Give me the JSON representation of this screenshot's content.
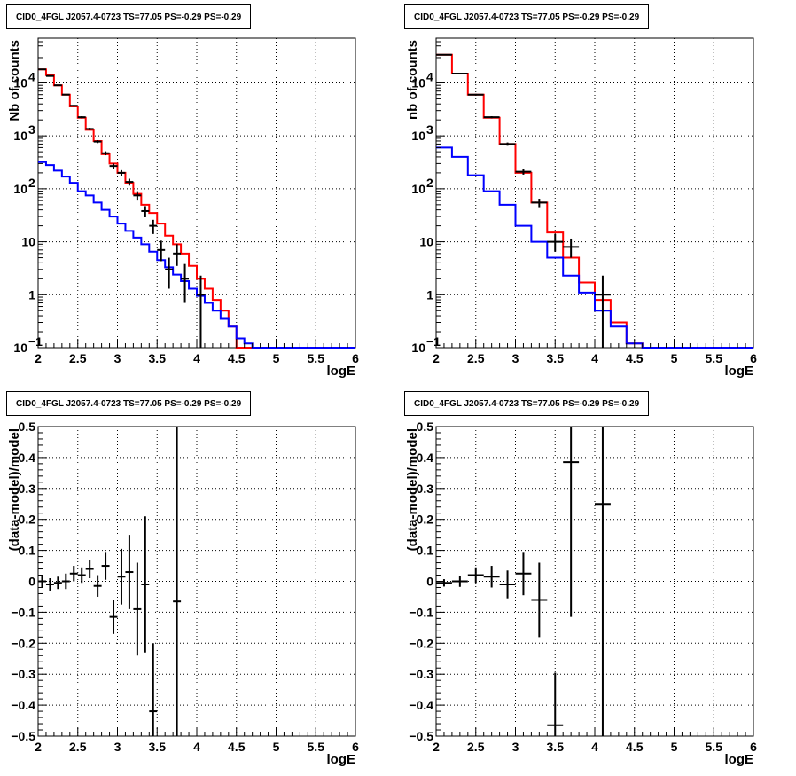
{
  "chart_data": [
    {
      "type": "line",
      "title": "CID0_4FGL J2057.4-0723 TS=77.05 PS=-0.29 PS=-0.29",
      "xlabel": "logE",
      "ylabel": "Nb of counts",
      "xlim": [
        2,
        6
      ],
      "ylim": [
        0.1,
        70000
      ],
      "yscale": "log",
      "grid": true,
      "xticks": [
        "2",
        "2.5",
        "3",
        "3.5",
        "4",
        "4.5",
        "5",
        "5.5",
        "6"
      ],
      "yticks": [
        {
          "v": 0.1,
          "label": "10",
          "sup": "−1"
        },
        {
          "v": 1,
          "label": "1"
        },
        {
          "v": 10,
          "label": "10"
        },
        {
          "v": 100,
          "label": "10",
          "sup": "2"
        },
        {
          "v": 1000,
          "label": "10",
          "sup": "3"
        },
        {
          "v": 10000,
          "label": "10",
          "sup": "4"
        }
      ],
      "bin_edges": [
        2.0,
        2.1,
        2.2,
        2.3,
        2.4,
        2.5,
        2.6,
        2.7,
        2.8,
        2.9,
        3.0,
        3.1,
        3.2,
        3.3,
        3.4,
        3.5,
        3.6,
        3.7,
        3.8,
        3.9,
        4.0,
        4.1,
        4.2,
        4.3,
        4.4,
        4.5,
        4.6,
        4.7,
        4.8,
        4.9,
        5.0,
        5.1,
        5.2,
        5.3,
        5.4,
        5.5,
        5.6,
        5.7,
        5.8,
        5.9,
        6.0
      ],
      "series": [
        {
          "color": "#ff0000",
          "style": "step",
          "values": [
            18000,
            14000,
            9000,
            6000,
            3600,
            2200,
            1300,
            800,
            450,
            300,
            200,
            130,
            80,
            50,
            35,
            22,
            13,
            9,
            6,
            3.5,
            2,
            1.3,
            0.8,
            0.5,
            0.25,
            0.1,
            0.1,
            0.1,
            0.1,
            0.1,
            0.1,
            0.1,
            0.1,
            0.1,
            0.1,
            0.1,
            0.1,
            0.1,
            0.1,
            0.1
          ]
        },
        {
          "color": "#0000ff",
          "style": "step",
          "values": [
            320,
            280,
            220,
            170,
            130,
            90,
            75,
            55,
            40,
            30,
            22,
            16,
            12,
            9,
            6.5,
            4.5,
            3.3,
            2.4,
            1.8,
            1.3,
            0.95,
            0.7,
            0.5,
            0.35,
            0.25,
            0.15,
            0.12,
            0.1,
            0.1,
            0.1,
            0.1,
            0.1,
            0.1,
            0.1,
            0.1,
            0.1,
            0.1,
            0.1,
            0.1,
            0.1
          ]
        },
        {
          "color": "#000000",
          "style": "points",
          "points": [
            {
              "x": 2.05,
              "y": 18000,
              "xerr": 0.05,
              "ylo": 17800,
              "yhi": 18200
            },
            {
              "x": 2.15,
              "y": 13500,
              "xerr": 0.05,
              "ylo": 13300,
              "yhi": 13700
            },
            {
              "x": 2.25,
              "y": 9000,
              "xerr": 0.05,
              "ylo": 8800,
              "yhi": 9200
            },
            {
              "x": 2.35,
              "y": 6000,
              "xerr": 0.05,
              "ylo": 5850,
              "yhi": 6150
            },
            {
              "x": 2.45,
              "y": 3700,
              "xerr": 0.05,
              "ylo": 3580,
              "yhi": 3820
            },
            {
              "x": 2.55,
              "y": 2250,
              "xerr": 0.05,
              "ylo": 2150,
              "yhi": 2350
            },
            {
              "x": 2.65,
              "y": 1350,
              "xerr": 0.05,
              "ylo": 1280,
              "yhi": 1420
            },
            {
              "x": 2.75,
              "y": 780,
              "xerr": 0.05,
              "ylo": 730,
              "yhi": 830
            },
            {
              "x": 2.85,
              "y": 470,
              "xerr": 0.05,
              "ylo": 430,
              "yhi": 510
            },
            {
              "x": 2.95,
              "y": 270,
              "xerr": 0.05,
              "ylo": 240,
              "yhi": 300
            },
            {
              "x": 3.05,
              "y": 200,
              "xerr": 0.05,
              "ylo": 175,
              "yhi": 225
            },
            {
              "x": 3.15,
              "y": 135,
              "xerr": 0.05,
              "ylo": 115,
              "yhi": 155
            },
            {
              "x": 3.25,
              "y": 75,
              "xerr": 0.05,
              "ylo": 60,
              "yhi": 90
            },
            {
              "x": 3.35,
              "y": 38,
              "xerr": 0.05,
              "ylo": 29,
              "yhi": 47
            },
            {
              "x": 3.45,
              "y": 20,
              "xerr": 0.05,
              "ylo": 14,
              "yhi": 26
            },
            {
              "x": 3.55,
              "y": 7,
              "xerr": 0.05,
              "ylo": 4.3,
              "yhi": 10.5
            },
            {
              "x": 3.65,
              "y": 3,
              "xerr": 0.05,
              "ylo": 1.3,
              "yhi": 5
            },
            {
              "x": 3.75,
              "y": 6,
              "xerr": 0.05,
              "ylo": 3.5,
              "yhi": 9
            },
            {
              "x": 3.85,
              "y": 2,
              "xerr": 0.05,
              "ylo": 0.7,
              "yhi": 3.8
            },
            {
              "x": 4.05,
              "y": 1,
              "xerr": 0.05,
              "ylo": 0.1,
              "yhi": 2.3
            }
          ]
        }
      ]
    },
    {
      "type": "line",
      "title": "CID0_4FGL J2057.4-0723 TS=77.05 PS=-0.29 PS=-0.29",
      "xlabel": "logE",
      "ylabel": "nb of counts",
      "xlim": [
        2,
        6
      ],
      "ylim": [
        0.1,
        70000
      ],
      "yscale": "log",
      "grid": true,
      "xticks": [
        "2",
        "2.5",
        "3",
        "3.5",
        "4",
        "4.5",
        "5",
        "5.5",
        "6"
      ],
      "yticks": [
        {
          "v": 0.1,
          "label": "10",
          "sup": "−1"
        },
        {
          "v": 1,
          "label": "1"
        },
        {
          "v": 10,
          "label": "10"
        },
        {
          "v": 100,
          "label": "10",
          "sup": "2"
        },
        {
          "v": 1000,
          "label": "10",
          "sup": "3"
        },
        {
          "v": 10000,
          "label": "10",
          "sup": "4"
        }
      ],
      "bin_edges": [
        2.0,
        2.2,
        2.4,
        2.6,
        2.8,
        3.0,
        3.2,
        3.4,
        3.6,
        3.8,
        4.0,
        4.2,
        4.4,
        4.6,
        4.8,
        5.0,
        5.2,
        5.4,
        5.6,
        5.8,
        6.0
      ],
      "series": [
        {
          "color": "#ff0000",
          "style": "step",
          "values": [
            34000,
            15000,
            6000,
            2200,
            700,
            200,
            55,
            15,
            5,
            1.7,
            0.8,
            0.3,
            0.12,
            0.1,
            0.1,
            0.1,
            0.1,
            0.1,
            0.1,
            0.1
          ]
        },
        {
          "color": "#0000ff",
          "style": "step",
          "values": [
            600,
            400,
            180,
            90,
            50,
            20,
            10,
            5,
            2.3,
            1.1,
            0.5,
            0.25,
            0.12,
            0.1,
            0.1,
            0.1,
            0.1,
            0.1,
            0.1,
            0.1
          ]
        },
        {
          "color": "#000000",
          "style": "points",
          "points": [
            {
              "x": 2.1,
              "y": 34000,
              "xerr": 0.1,
              "ylo": 33600,
              "yhi": 34400
            },
            {
              "x": 2.3,
              "y": 15000,
              "xerr": 0.1,
              "ylo": 14700,
              "yhi": 15300
            },
            {
              "x": 2.5,
              "y": 6000,
              "xerr": 0.1,
              "ylo": 5800,
              "yhi": 6200
            },
            {
              "x": 2.7,
              "y": 2250,
              "xerr": 0.1,
              "ylo": 2150,
              "yhi": 2350
            },
            {
              "x": 2.9,
              "y": 700,
              "xerr": 0.1,
              "ylo": 650,
              "yhi": 750
            },
            {
              "x": 3.1,
              "y": 210,
              "xerr": 0.1,
              "ylo": 185,
              "yhi": 235
            },
            {
              "x": 3.3,
              "y": 55,
              "xerr": 0.1,
              "ylo": 45,
              "yhi": 65
            },
            {
              "x": 3.5,
              "y": 10,
              "xerr": 0.1,
              "ylo": 6.5,
              "yhi": 14
            },
            {
              "x": 3.7,
              "y": 8,
              "xerr": 0.1,
              "ylo": 5,
              "yhi": 11.5
            },
            {
              "x": 4.1,
              "y": 1,
              "xerr": 0.1,
              "ylo": 0.1,
              "yhi": 2.3
            }
          ]
        }
      ]
    },
    {
      "type": "scatter",
      "title": "CID0_4FGL J2057.4-0723 TS=77.05 PS=-0.29 PS=-0.29",
      "xlabel": "logE",
      "ylabel": "(data-model)/model",
      "xlim": [
        2,
        6
      ],
      "ylim": [
        -0.5,
        0.5
      ],
      "grid": true,
      "xticks": [
        "2",
        "2.5",
        "3",
        "3.5",
        "4",
        "4.5",
        "5",
        "5.5",
        "6"
      ],
      "yticks": [
        "−0.5",
        "−0.4",
        "−0.3",
        "−0.2",
        "−0.1",
        "0",
        "0.1",
        "0.2",
        "0.3",
        "0.4",
        "0.5"
      ],
      "points": [
        {
          "x": 2.05,
          "y": 0.0,
          "xerr": 0.05,
          "err": 0.02
        },
        {
          "x": 2.15,
          "y": -0.01,
          "xerr": 0.05,
          "err": 0.02
        },
        {
          "x": 2.25,
          "y": -0.005,
          "xerr": 0.05,
          "err": 0.02
        },
        {
          "x": 2.35,
          "y": 0.0,
          "xerr": 0.05,
          "err": 0.025
        },
        {
          "x": 2.45,
          "y": 0.025,
          "xerr": 0.05,
          "err": 0.025
        },
        {
          "x": 2.55,
          "y": 0.02,
          "xerr": 0.05,
          "err": 0.025
        },
        {
          "x": 2.65,
          "y": 0.04,
          "xerr": 0.05,
          "err": 0.03
        },
        {
          "x": 2.75,
          "y": -0.015,
          "xerr": 0.05,
          "err": 0.035
        },
        {
          "x": 2.85,
          "y": 0.05,
          "xerr": 0.05,
          "err": 0.045
        },
        {
          "x": 2.95,
          "y": -0.115,
          "xerr": 0.05,
          "err": 0.055
        },
        {
          "x": 3.05,
          "y": 0.015,
          "xerr": 0.05,
          "err": 0.09
        },
        {
          "x": 3.15,
          "y": 0.03,
          "xerr": 0.05,
          "err": 0.12
        },
        {
          "x": 3.25,
          "y": -0.09,
          "xerr": 0.05,
          "err": 0.15
        },
        {
          "x": 3.35,
          "y": -0.01,
          "xerr": 0.05,
          "err": 0.22
        },
        {
          "x": 3.45,
          "y": -0.42,
          "xerr": 0.05,
          "err": 0.22
        },
        {
          "x": 3.75,
          "y": -0.065,
          "xerr": 0.05,
          "err": 0.6
        }
      ]
    },
    {
      "type": "scatter",
      "title": "CID0_4FGL J2057.4-0723 TS=77.05 PS=-0.29 PS=-0.29",
      "xlabel": "logE",
      "ylabel": "(data-model)/model",
      "xlim": [
        2,
        6
      ],
      "ylim": [
        -0.5,
        0.5
      ],
      "grid": true,
      "xticks": [
        "2",
        "2.5",
        "3",
        "3.5",
        "4",
        "4.5",
        "5",
        "5.5",
        "6"
      ],
      "yticks": [
        "−0.5",
        "−0.4",
        "−0.3",
        "−0.2",
        "−0.1",
        "0",
        "0.1",
        "0.2",
        "0.3",
        "0.4",
        "0.5"
      ],
      "points": [
        {
          "x": 2.1,
          "y": -0.005,
          "xerr": 0.1,
          "err": 0.012
        },
        {
          "x": 2.3,
          "y": 0.0,
          "xerr": 0.1,
          "err": 0.018
        },
        {
          "x": 2.5,
          "y": 0.02,
          "xerr": 0.1,
          "err": 0.025
        },
        {
          "x": 2.7,
          "y": 0.015,
          "xerr": 0.1,
          "err": 0.035
        },
        {
          "x": 2.9,
          "y": -0.01,
          "xerr": 0.1,
          "err": 0.045
        },
        {
          "x": 3.1,
          "y": 0.025,
          "xerr": 0.1,
          "err": 0.07
        },
        {
          "x": 3.3,
          "y": -0.06,
          "xerr": 0.1,
          "err": 0.12
        },
        {
          "x": 3.5,
          "y": -0.465,
          "xerr": 0.1,
          "err": 0.17
        },
        {
          "x": 3.7,
          "y": 0.385,
          "xerr": 0.1,
          "err": 0.5
        },
        {
          "x": 4.1,
          "y": 0.25,
          "xerr": 0.1,
          "err": 1.2
        }
      ]
    }
  ]
}
